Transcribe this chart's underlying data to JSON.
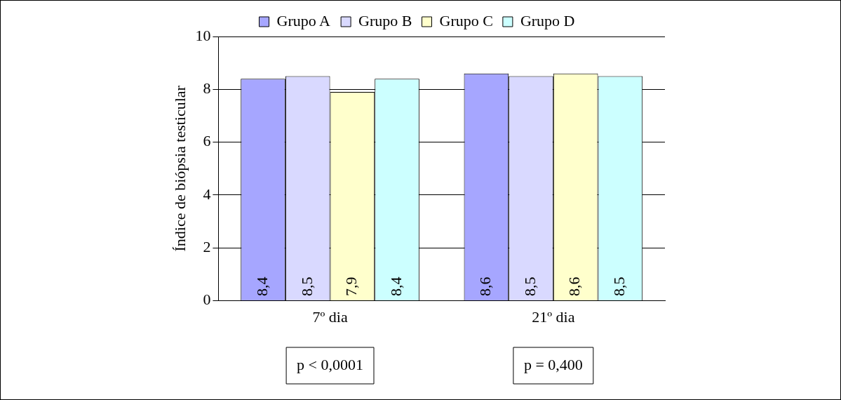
{
  "chart_data": {
    "type": "bar",
    "ylabel": "Índice de biópsia testicular",
    "categories": [
      "7º dia",
      "21º dia"
    ],
    "series": [
      {
        "name": "Grupo A",
        "color": "#a6a6ff",
        "values": [
          8.4,
          8.6
        ],
        "value_labels": [
          "8,4",
          "8,6"
        ]
      },
      {
        "name": "Grupo B",
        "color": "#d9d9ff",
        "values": [
          8.5,
          8.5
        ],
        "value_labels": [
          "8,5",
          "8,5"
        ]
      },
      {
        "name": "Grupo C",
        "color": "#ffffcc",
        "values": [
          7.9,
          8.6
        ],
        "value_labels": [
          "7,9",
          "8,6"
        ]
      },
      {
        "name": "Grupo D",
        "color": "#ccffff",
        "values": [
          8.4,
          8.5
        ],
        "value_labels": [
          "8,4",
          "8,5"
        ]
      }
    ],
    "ylim": [
      0,
      10
    ],
    "yticks": [
      0,
      2,
      4,
      6,
      8,
      10
    ],
    "grid": "y",
    "legend": "top",
    "annotations": [
      "p < 0,0001",
      "p = 0,400"
    ]
  }
}
